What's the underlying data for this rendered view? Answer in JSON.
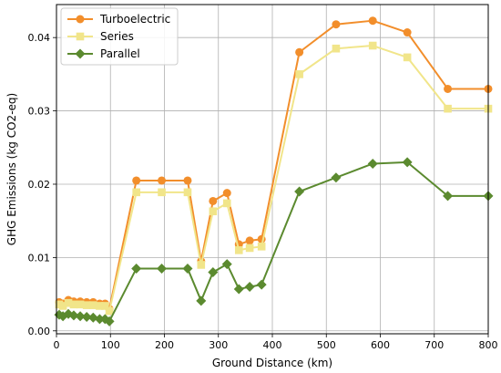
{
  "chart_data": {
    "type": "line",
    "xlabel": "Ground Distance (km)",
    "ylabel": "GHG Emissions (kg CO2-eq)",
    "xlim": [
      0,
      800
    ],
    "ylim": [
      -0.0004,
      0.0445
    ],
    "xticks": [
      0,
      100,
      200,
      300,
      400,
      500,
      600,
      700,
      800
    ],
    "yticks": [
      0.0,
      0.01,
      0.02,
      0.03,
      0.04
    ],
    "ytick_labels": [
      "0.00",
      "0.01",
      "0.02",
      "0.03",
      "0.04"
    ],
    "grid": true,
    "legend_position": "top-left",
    "series": [
      {
        "name": "Turboelectric",
        "color": "#f28e2b",
        "marker": "circle",
        "x": [
          5,
          12,
          22,
          32,
          44,
          56,
          68,
          80,
          90,
          98,
          148,
          195,
          243,
          268,
          290,
          316,
          338,
          358,
          380,
          450,
          518,
          586,
          650,
          725,
          800
        ],
        "y": [
          0.0039,
          0.0037,
          0.0042,
          0.004,
          0.004,
          0.0039,
          0.0039,
          0.0037,
          0.0037,
          0.003,
          0.0205,
          0.0205,
          0.0205,
          0.0095,
          0.0177,
          0.0188,
          0.0118,
          0.0123,
          0.0125,
          0.038,
          0.0418,
          0.0423,
          0.0407,
          0.033,
          0.033
        ]
      },
      {
        "name": "Series",
        "color": "#f1e58a",
        "marker": "square",
        "x": [
          5,
          12,
          22,
          32,
          44,
          56,
          68,
          80,
          90,
          98,
          148,
          195,
          243,
          268,
          290,
          316,
          338,
          358,
          380,
          450,
          518,
          586,
          650,
          725,
          800
        ],
        "y": [
          0.0036,
          0.0034,
          0.0038,
          0.0036,
          0.0036,
          0.0035,
          0.0035,
          0.0034,
          0.0034,
          0.0027,
          0.0189,
          0.0189,
          0.0189,
          0.009,
          0.0163,
          0.0174,
          0.011,
          0.0113,
          0.0115,
          0.035,
          0.0385,
          0.0389,
          0.0373,
          0.0303,
          0.0303
        ]
      },
      {
        "name": "Parallel",
        "color": "#5b8a2f",
        "marker": "diamond",
        "x": [
          5,
          12,
          22,
          32,
          44,
          56,
          68,
          80,
          90,
          98,
          148,
          195,
          243,
          268,
          290,
          316,
          338,
          358,
          380,
          450,
          518,
          586,
          650,
          725,
          800
        ],
        "y": [
          0.0022,
          0.002,
          0.0023,
          0.0021,
          0.002,
          0.0019,
          0.0018,
          0.0016,
          0.0016,
          0.0013,
          0.0085,
          0.0085,
          0.0085,
          0.0041,
          0.008,
          0.0091,
          0.0057,
          0.006,
          0.0063,
          0.019,
          0.0209,
          0.0228,
          0.023,
          0.0184,
          0.0184
        ]
      }
    ]
  }
}
